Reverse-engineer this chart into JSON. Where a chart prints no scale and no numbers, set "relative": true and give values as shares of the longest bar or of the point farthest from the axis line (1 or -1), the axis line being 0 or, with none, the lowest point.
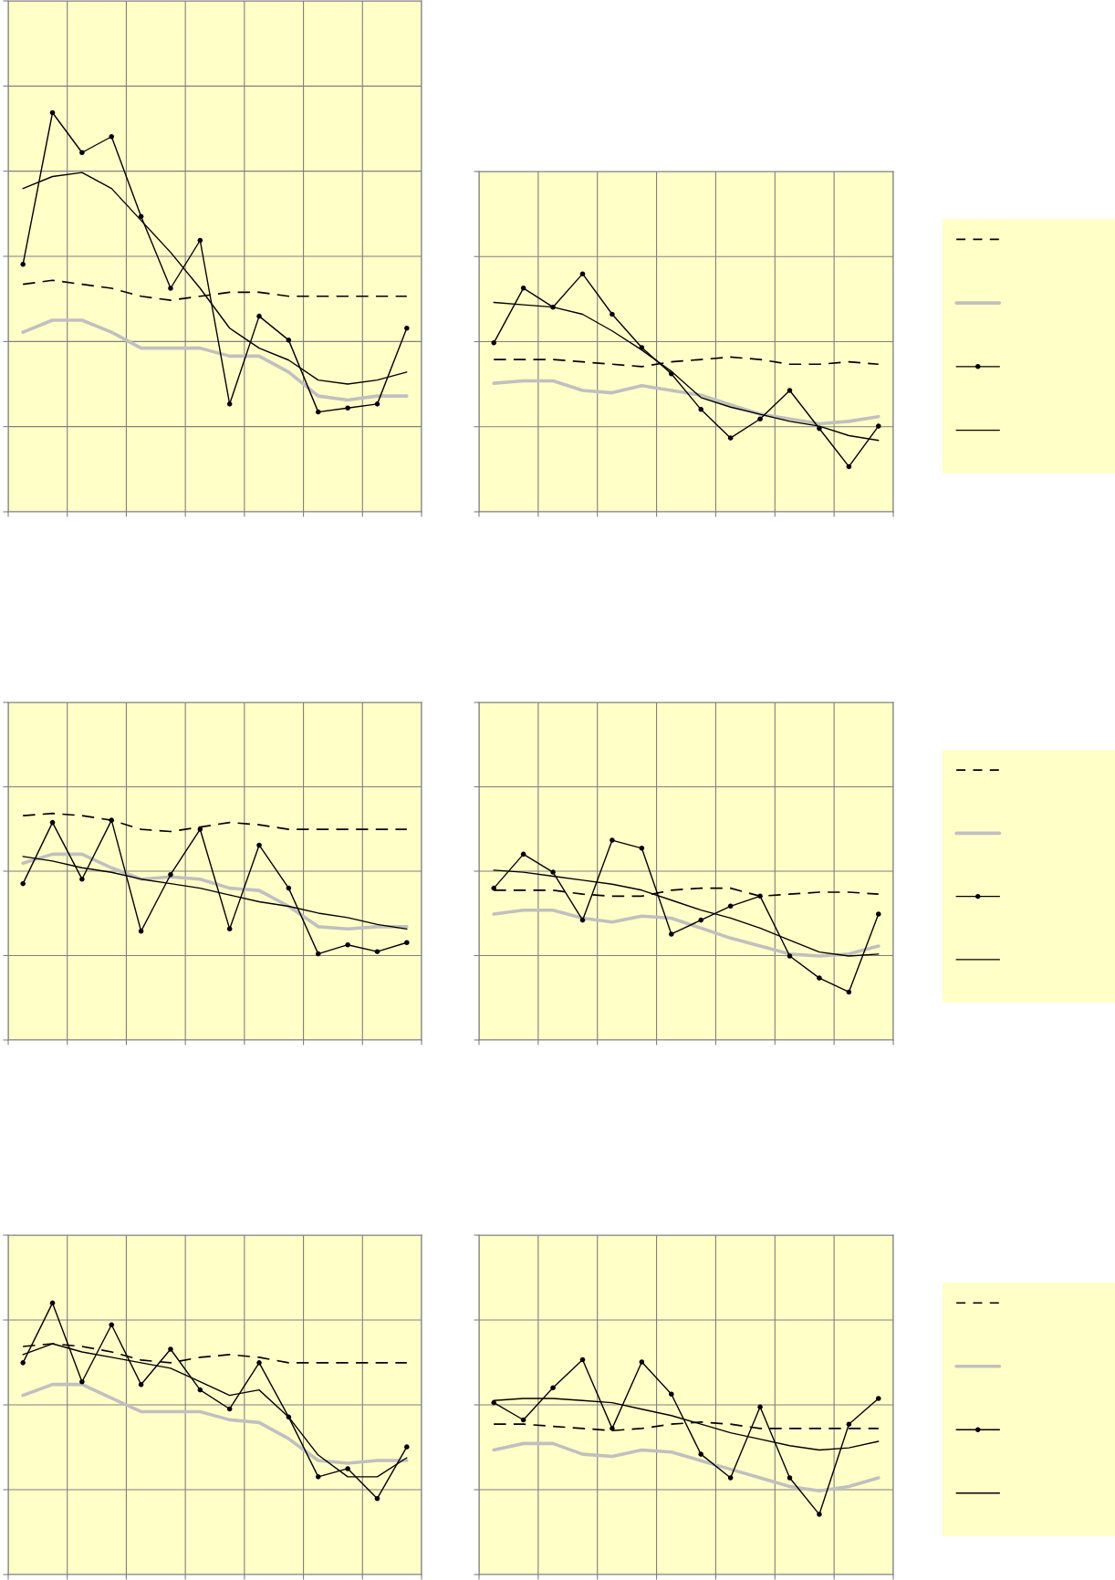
{
  "chart_data": [
    {
      "type": "line",
      "relative": true,
      "grid": true,
      "categories": [
        null,
        null,
        null,
        null,
        null,
        null,
        null,
        null,
        null,
        null,
        null,
        null,
        null,
        null
      ],
      "series": [
        {
          "color": "#000000",
          "line_style": "dashed",
          "marker": "none",
          "values": [
            0.57,
            0.58,
            0.57,
            0.56,
            0.54,
            0.53,
            0.54,
            0.55,
            0.55,
            0.54,
            0.54,
            0.54,
            0.54,
            0.54
          ]
        },
        {
          "color": "#c0c0c0",
          "line_style": "solid",
          "marker": "none",
          "values": [
            0.45,
            0.48,
            0.48,
            0.45,
            0.41,
            0.41,
            0.41,
            0.39,
            0.39,
            0.35,
            0.29,
            0.28,
            0.29,
            0.29
          ]
        },
        {
          "color": "#000000",
          "line_style": "solid",
          "marker": "circle",
          "values": [
            0.62,
            1,
            0.9,
            0.94,
            0.74,
            0.56,
            0.68,
            0.27,
            0.49,
            0.43,
            0.25,
            0.26,
            0.27,
            0.46
          ]
        },
        {
          "color": "#000000",
          "line_style": "solid",
          "marker": "none",
          "values": [
            0.81,
            0.84,
            0.85,
            0.81,
            0.73,
            0.65,
            0.56,
            0.46,
            0.41,
            0.38,
            0.33,
            0.32,
            0.33,
            0.35
          ]
        }
      ]
    },
    {
      "type": "line",
      "relative": true,
      "grid": true,
      "categories": [
        null,
        null,
        null,
        null,
        null,
        null,
        null,
        null,
        null,
        null,
        null,
        null,
        null,
        null
      ],
      "series": [
        {
          "color": "#000000",
          "line_style": "dashed",
          "marker": "none",
          "values": [
            0.64,
            0.64,
            0.64,
            0.63,
            0.62,
            0.61,
            0.63,
            0.64,
            0.65,
            0.64,
            0.62,
            0.62,
            0.63,
            0.62
          ]
        },
        {
          "color": "#c0c0c0",
          "line_style": "solid",
          "marker": "none",
          "values": [
            0.54,
            0.55,
            0.55,
            0.51,
            0.5,
            0.53,
            0.51,
            0.49,
            0.45,
            0.41,
            0.39,
            0.37,
            0.38,
            0.4
          ]
        },
        {
          "color": "#000000",
          "line_style": "solid",
          "marker": "circle",
          "values": [
            0.71,
            0.94,
            0.86,
            1,
            0.83,
            0.69,
            0.58,
            0.43,
            0.31,
            0.39,
            0.51,
            0.35,
            0.19,
            0.36
          ]
        },
        {
          "color": "#000000",
          "line_style": "solid",
          "marker": "none",
          "values": [
            0.88,
            0.87,
            0.86,
            0.83,
            0.76,
            0.68,
            0.59,
            0.48,
            0.44,
            0.41,
            0.38,
            0.36,
            0.32,
            0.3
          ]
        }
      ]
    },
    {
      "type": "line",
      "relative": true,
      "grid": true,
      "categories": [
        null,
        null,
        null,
        null,
        null,
        null,
        null,
        null,
        null,
        null,
        null,
        null,
        null,
        null
      ],
      "series": [
        {
          "color": "#000000",
          "line_style": "dashed",
          "marker": "none",
          "values": [
            0.99,
            1,
            0.99,
            0.97,
            0.93,
            0.92,
            0.94,
            0.96,
            0.95,
            0.93,
            0.93,
            0.93,
            0.93,
            0.93
          ]
        },
        {
          "color": "#c0c0c0",
          "line_style": "solid",
          "marker": "none",
          "values": [
            0.78,
            0.82,
            0.82,
            0.76,
            0.71,
            0.72,
            0.71,
            0.67,
            0.66,
            0.59,
            0.5,
            0.49,
            0.5,
            0.5
          ]
        },
        {
          "color": "#000000",
          "line_style": "solid",
          "marker": "circle",
          "values": [
            0.69,
            0.96,
            0.71,
            0.97,
            0.48,
            0.73,
            0.93,
            0.49,
            0.86,
            0.67,
            0.38,
            0.42,
            0.39,
            0.43
          ]
        },
        {
          "color": "#000000",
          "line_style": "solid",
          "marker": "none",
          "values": [
            0.81,
            0.79,
            0.76,
            0.74,
            0.71,
            0.69,
            0.67,
            0.64,
            0.61,
            0.59,
            0.56,
            0.54,
            0.51,
            0.49
          ]
        }
      ]
    },
    {
      "type": "line",
      "relative": true,
      "grid": true,
      "categories": [
        null,
        null,
        null,
        null,
        null,
        null,
        null,
        null,
        null,
        null,
        null,
        null,
        null,
        null
      ],
      "series": [
        {
          "color": "#000000",
          "line_style": "dashed",
          "marker": "none",
          "values": [
            0.75,
            0.75,
            0.75,
            0.73,
            0.72,
            0.72,
            0.75,
            0.76,
            0.76,
            0.72,
            0.73,
            0.74,
            0.74,
            0.73
          ]
        },
        {
          "color": "#c0c0c0",
          "line_style": "solid",
          "marker": "none",
          "values": [
            0.63,
            0.65,
            0.65,
            0.61,
            0.59,
            0.62,
            0.61,
            0.56,
            0.51,
            0.47,
            0.43,
            0.42,
            0.43,
            0.47
          ]
        },
        {
          "color": "#000000",
          "line_style": "solid",
          "marker": "circle",
          "values": [
            0.76,
            0.93,
            0.84,
            0.6,
            1,
            0.96,
            0.53,
            0.6,
            0.67,
            0.72,
            0.42,
            0.31,
            0.24,
            0.63
          ]
        },
        {
          "color": "#000000",
          "line_style": "solid",
          "marker": "none",
          "values": [
            0.85,
            0.84,
            0.82,
            0.8,
            0.78,
            0.75,
            0.7,
            0.65,
            0.61,
            0.56,
            0.5,
            0.44,
            0.42,
            0.43
          ]
        }
      ]
    },
    {
      "type": "line",
      "relative": true,
      "grid": true,
      "categories": [
        null,
        null,
        null,
        null,
        null,
        null,
        null,
        null,
        null,
        null,
        null,
        null,
        null,
        null
      ],
      "series": [
        {
          "color": "#000000",
          "line_style": "dashed",
          "marker": "none",
          "values": [
            0.84,
            0.85,
            0.84,
            0.82,
            0.79,
            0.78,
            0.8,
            0.81,
            0.8,
            0.78,
            0.78,
            0.78,
            0.78,
            0.78
          ]
        },
        {
          "color": "#c0c0c0",
          "line_style": "solid",
          "marker": "none",
          "values": [
            0.66,
            0.7,
            0.7,
            0.65,
            0.6,
            0.6,
            0.6,
            0.57,
            0.56,
            0.5,
            0.42,
            0.41,
            0.42,
            0.42
          ]
        },
        {
          "color": "#000000",
          "line_style": "solid",
          "marker": "circle",
          "values": [
            0.78,
            1,
            0.71,
            0.92,
            0.7,
            0.83,
            0.68,
            0.61,
            0.78,
            0.58,
            0.36,
            0.39,
            0.28,
            0.47
          ]
        },
        {
          "color": "#000000",
          "line_style": "solid",
          "marker": "none",
          "values": [
            0.81,
            0.85,
            0.82,
            0.8,
            0.78,
            0.76,
            0.71,
            0.66,
            0.68,
            0.58,
            0.44,
            0.36,
            0.36,
            0.43
          ]
        }
      ]
    },
    {
      "type": "line",
      "relative": true,
      "grid": true,
      "categories": [
        null,
        null,
        null,
        null,
        null,
        null,
        null,
        null,
        null,
        null,
        null,
        null,
        null,
        null
      ],
      "series": [
        {
          "color": "#000000",
          "line_style": "dashed",
          "marker": "none",
          "values": [
            0.7,
            0.7,
            0.69,
            0.68,
            0.67,
            0.68,
            0.7,
            0.71,
            0.7,
            0.68,
            0.68,
            0.68,
            0.68,
            0.68
          ]
        },
        {
          "color": "#c0c0c0",
          "line_style": "solid",
          "marker": "none",
          "values": [
            0.58,
            0.61,
            0.61,
            0.56,
            0.55,
            0.58,
            0.57,
            0.53,
            0.49,
            0.45,
            0.41,
            0.39,
            0.41,
            0.45
          ]
        },
        {
          "color": "#000000",
          "line_style": "solid",
          "marker": "circle",
          "values": [
            0.8,
            0.72,
            0.87,
            1,
            0.68,
            0.99,
            0.84,
            0.56,
            0.45,
            0.78,
            0.45,
            0.28,
            0.7,
            0.82
          ]
        },
        {
          "color": "#000000",
          "line_style": "solid",
          "marker": "none",
          "values": [
            0.81,
            0.82,
            0.82,
            0.81,
            0.8,
            0.77,
            0.74,
            0.7,
            0.66,
            0.63,
            0.6,
            0.58,
            0.59,
            0.62
          ]
        }
      ]
    }
  ]
}
